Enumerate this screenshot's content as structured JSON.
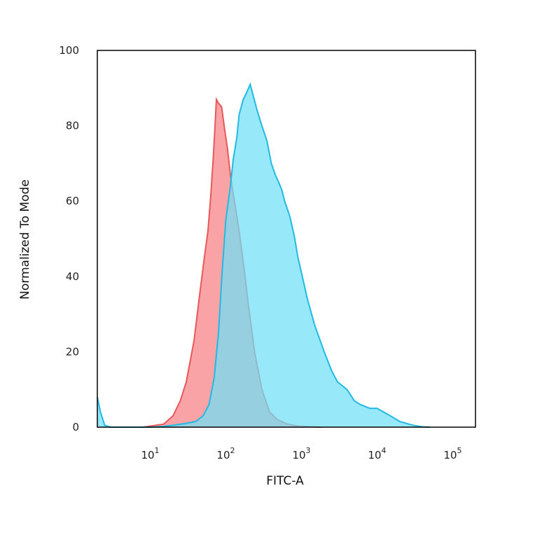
{
  "chart_data": {
    "type": "area",
    "xlabel": "FITC-A",
    "ylabel": "Normalized To Mode",
    "x_scale": "log",
    "xlim": [
      2,
      200000
    ],
    "ylim": [
      0,
      100
    ],
    "x_ticks": [
      {
        "value": 10,
        "base": "10",
        "exp": "1"
      },
      {
        "value": 100,
        "base": "10",
        "exp": "2"
      },
      {
        "value": 1000,
        "base": "10",
        "exp": "3"
      },
      {
        "value": 10000,
        "base": "10",
        "exp": "4"
      },
      {
        "value": 100000,
        "base": "10",
        "exp": "5"
      }
    ],
    "y_ticks": [
      0,
      20,
      40,
      60,
      80,
      100
    ],
    "grid": false,
    "series": [
      {
        "color": "#e8585a",
        "fill": "#f9a3a7",
        "x": [
          8,
          15,
          20,
          25,
          30,
          38,
          45,
          52,
          58,
          63,
          68,
          72,
          75,
          80,
          88,
          95,
          105,
          115,
          125,
          135,
          150,
          175,
          200,
          240,
          300,
          380,
          480,
          650,
          900,
          1400,
          1800
        ],
        "y": [
          0,
          0.8,
          3,
          7,
          12,
          23,
          35,
          45,
          52,
          61,
          71,
          80,
          87,
          86,
          85,
          80,
          74,
          67,
          62,
          58,
          52,
          42,
          32,
          20,
          10,
          4,
          2,
          0.8,
          0.3,
          0.1,
          0
        ]
      },
      {
        "color": "#22b9e3",
        "fill": "#6fe0f7",
        "x": [
          2,
          2.2,
          2.5,
          3,
          10,
          15,
          20,
          30,
          40,
          50,
          60,
          70,
          80,
          90,
          100,
          115,
          125,
          140,
          150,
          170,
          190,
          210,
          230,
          260,
          300,
          350,
          400,
          450,
          500,
          550,
          600,
          700,
          800,
          900,
          1000,
          1200,
          1500,
          2000,
          2500,
          3000,
          4000,
          5000,
          6000,
          8000,
          10000,
          15000,
          20000,
          30000,
          40000,
          50000
        ],
        "y": [
          8,
          4,
          0.5,
          0,
          0,
          0.2,
          0.5,
          1,
          1.5,
          3,
          6,
          13,
          25,
          42,
          55,
          64,
          71,
          77,
          83,
          87,
          89,
          91,
          88,
          84,
          80,
          76,
          70,
          67,
          65,
          63,
          60,
          56,
          51,
          45,
          41,
          34,
          27,
          20,
          15,
          12,
          10,
          7,
          6,
          5,
          5,
          3,
          1.5,
          0.5,
          0.1,
          0
        ]
      }
    ]
  }
}
